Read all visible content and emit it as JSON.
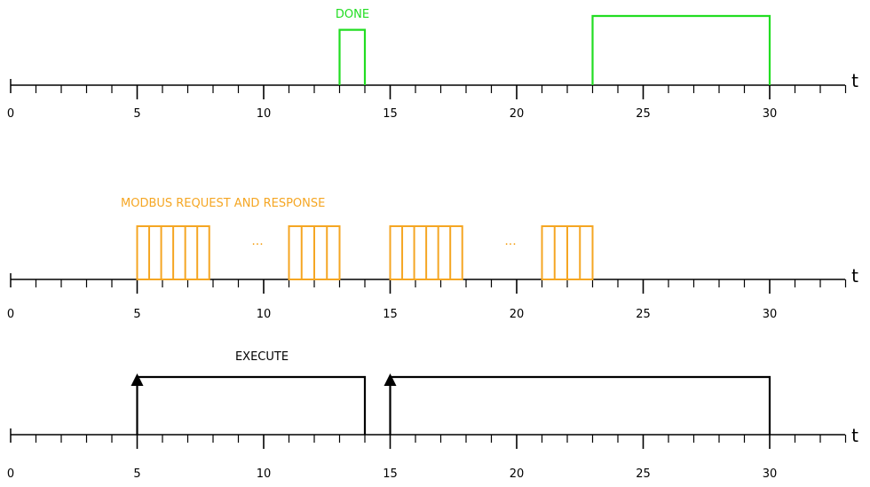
{
  "axis_variable": "t",
  "time_axis": {
    "min": 0,
    "max": 33,
    "ticks_major": [
      0,
      5,
      10,
      15,
      20,
      25,
      30
    ]
  },
  "colors": {
    "done": "#22dd22",
    "modbus": "#f5a623",
    "execute": "#000000",
    "axis": "#000000"
  },
  "signals": [
    {
      "id": "done",
      "label": "DONE",
      "color_key": "done",
      "tick_labels": [
        "0",
        "5",
        "10",
        "15",
        "20",
        "25",
        "30"
      ],
      "pulses": [
        {
          "start": 13,
          "end": 14,
          "level": 0.8
        },
        {
          "start": 23,
          "end": 30,
          "level": 1.0
        }
      ]
    },
    {
      "id": "modbus",
      "label": "MODBUS REQUEST AND RESPONSE",
      "color_key": "modbus",
      "tick_labels": [
        "0",
        "5",
        "10",
        "15",
        "20",
        "25",
        "30"
      ],
      "bursts": [
        {
          "start": 5,
          "end": 7.85,
          "count": 6
        },
        {
          "start": 11,
          "end": 13,
          "count": 4
        },
        {
          "start": 15,
          "end": 17.85,
          "count": 6
        },
        {
          "start": 21,
          "end": 23,
          "count": 4
        }
      ],
      "ellipses": [
        {
          "text": "...",
          "at": 9.8
        },
        {
          "text": "...",
          "at": 19.8
        }
      ]
    },
    {
      "id": "execute",
      "label": "EXECUTE",
      "color_key": "execute",
      "tick_labels": [
        "0",
        "5",
        "10",
        "15",
        "20",
        "25",
        "30"
      ],
      "pulses": [
        {
          "start": 5,
          "end": 14,
          "level": 1.0
        },
        {
          "start": 15,
          "end": 30,
          "level": 1.0
        }
      ]
    }
  ]
}
